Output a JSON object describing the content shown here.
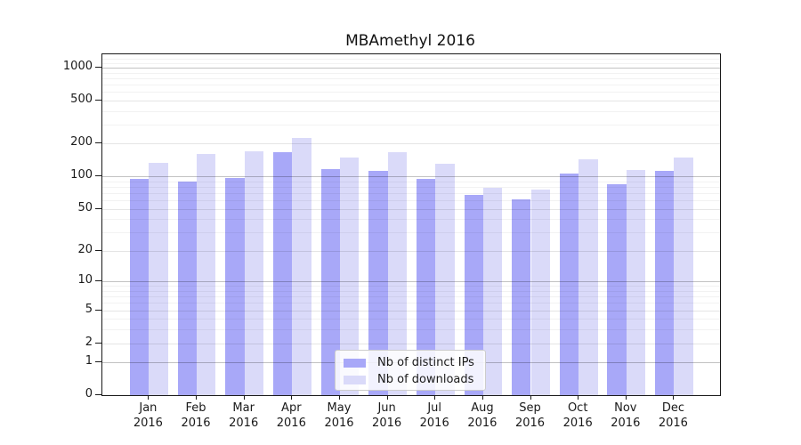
{
  "chart_data": {
    "type": "bar",
    "title": "MBAmethyl 2016",
    "categories": [
      "Jan 2016",
      "Feb 2016",
      "Mar 2016",
      "Apr 2016",
      "May 2016",
      "Jun 2016",
      "Jul 2016",
      "Aug 2016",
      "Sep 2016",
      "Oct 2016",
      "Nov 2016",
      "Dec 2016"
    ],
    "series": [
      {
        "name": "Nb of distinct IPs",
        "color": "#a8a8f8",
        "values": [
          94,
          89,
          96,
          167,
          117,
          112,
          95,
          67,
          61,
          107,
          85,
          113
        ]
      },
      {
        "name": "Nb of downloads",
        "color": "#dadaf9",
        "values": [
          132,
          161,
          170,
          226,
          149,
          167,
          131,
          78,
          76,
          143,
          114,
          150
        ]
      }
    ],
    "xlabel": "",
    "ylabel": "",
    "y_ticks": [
      0,
      1,
      2,
      5,
      10,
      20,
      50,
      100,
      200,
      500,
      1000
    ],
    "y_scale": "log10(value+1)",
    "ylim": [
      0,
      1320
    ],
    "grid": true,
    "legend_position": "inside lower-center",
    "gridlines": {
      "major": [
        1,
        10,
        100,
        1000
      ],
      "labeled_mid": [
        2,
        5,
        20,
        50,
        200,
        500
      ],
      "minor": [
        3,
        4,
        6,
        7,
        8,
        9,
        30,
        40,
        60,
        70,
        80,
        90,
        300,
        400,
        600,
        700,
        800,
        900,
        1100,
        1200
      ]
    }
  },
  "colors": {
    "bar_distinct_ips": "#a8a8f8",
    "bar_downloads": "#dadaf9",
    "axis": "#1a1a1a",
    "legend_border": "#cccccc",
    "background": "#ffffff"
  }
}
